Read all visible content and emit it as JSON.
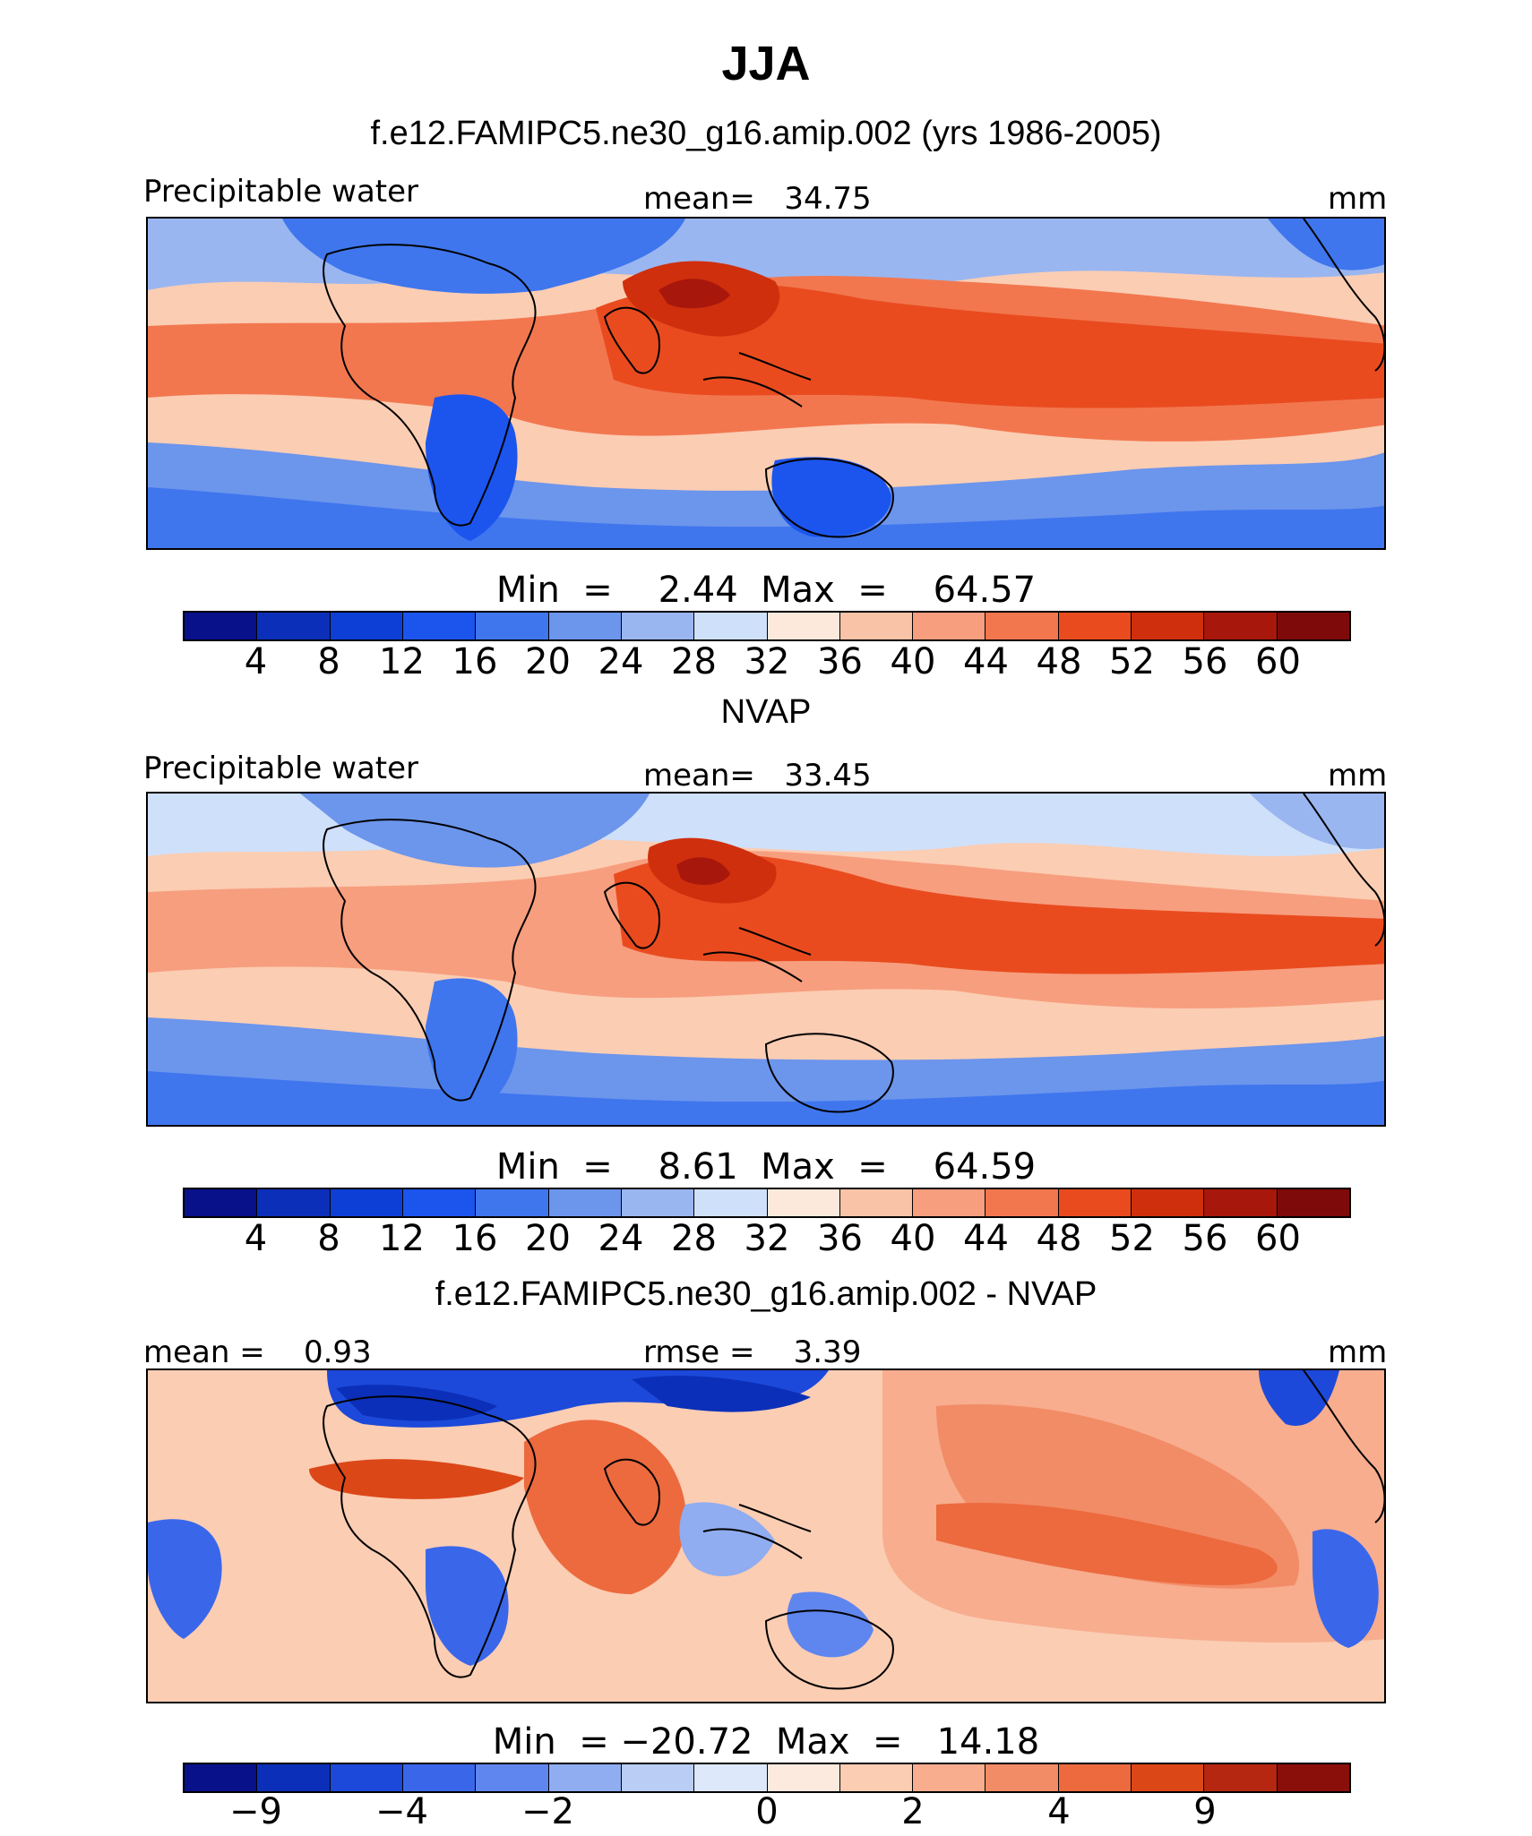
{
  "main_title": "JJA",
  "palette_abs": [
    "#08108a",
    "#0b2fb8",
    "#0d3fd6",
    "#1c55ee",
    "#3f76ee",
    "#6c95ec",
    "#9ab6f0",
    "#cfe0fa",
    "#fde9dc",
    "#f9c3a8",
    "#f79e7e",
    "#f2774f",
    "#e94b1f",
    "#cf2f0d",
    "#a8170b",
    "#7e0a0a"
  ],
  "palette_diff": [
    "#08108a",
    "#0b2fb8",
    "#1c49d9",
    "#3a67ea",
    "#5f86ee",
    "#8fadf0",
    "#b9cdf5",
    "#dde8fb",
    "#fdeadf",
    "#fbcdb3",
    "#f7ad8e",
    "#f28c66",
    "#ec6a3e",
    "#dc4718",
    "#b52710",
    "#8a0e0a"
  ],
  "panels": [
    {
      "title": "f.e12.FAMIPC5.ne30_g16.amip.002 (yrs 1986-2005)",
      "left_label": "Precipitable water",
      "center_label": "mean=   34.75",
      "right_label": "mm",
      "minmax": "Min  =    2.44  Max  =    64.57",
      "ticks": [
        "4",
        "8",
        "12",
        "16",
        "20",
        "24",
        "28",
        "32",
        "36",
        "40",
        "44",
        "48",
        "52",
        "56",
        "60"
      ],
      "mean": 34.75,
      "min": 2.44,
      "max": 64.57
    },
    {
      "title": "NVAP",
      "left_label": "Precipitable water",
      "center_label": "mean=   33.45",
      "right_label": "mm",
      "minmax": "Min  =    8.61  Max  =    64.59",
      "ticks": [
        "4",
        "8",
        "12",
        "16",
        "20",
        "24",
        "28",
        "32",
        "36",
        "40",
        "44",
        "48",
        "52",
        "56",
        "60"
      ],
      "mean": 33.45,
      "min": 8.61,
      "max": 64.59
    },
    {
      "title": "f.e12.FAMIPC5.ne30_g16.amip.002 - NVAP",
      "left_label": "mean =    0.93",
      "center_label": "rmse =    3.39",
      "right_label": "mm",
      "minmax": "Min  = −20.72  Max  =   14.18",
      "ticks": [
        "−9",
        "−4",
        "−2",
        "0",
        "2",
        "4",
        "9"
      ],
      "mean": 0.93,
      "rmse": 3.39,
      "min": -20.72,
      "max": 14.18
    }
  ]
}
